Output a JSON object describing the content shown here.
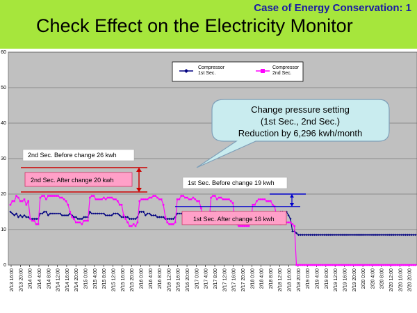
{
  "header": {
    "case_label": "Case of Energy Conservation: 1",
    "title": "Check Effect on the Electricity Monitor",
    "background_color": "#a6e63c"
  },
  "chart_data": {
    "type": "line",
    "title": "",
    "xlabel": "",
    "ylabel": "",
    "ylim": [
      0,
      60
    ],
    "yticks": [
      "0",
      "10",
      "20",
      "30",
      "40",
      "50",
      "60"
    ],
    "grid": true,
    "legend_position": "top-center",
    "x_tick_labels": [
      "2/13 16:00",
      "2/13 20:00",
      "2/14 0:00",
      "2/14 4:00",
      "2/14 8:00",
      "2/14 12:00",
      "2/14 16:00",
      "2/14 20:00",
      "2/15 0:00",
      "2/15 4:00",
      "2/15 8:00",
      "2/15 12:00",
      "2/15 16:00",
      "2/15 20:00",
      "2/16 0:00",
      "2/16 4:00",
      "2/16 8:00",
      "2/16 12:00",
      "2/16 16:00",
      "2/16 20:00",
      "2/17 0:00",
      "2/17 4:00",
      "2/17 8:00",
      "2/17 12:00",
      "2/17 16:00",
      "2/17 20:00",
      "2/18 0:00",
      "2/18 4:00",
      "2/18 8:00",
      "2/18 12:00",
      "2/18 16:00",
      "2/18 20:00",
      "2/19 0:00",
      "2/19 4:00",
      "2/19 8:00",
      "2/19 12:00",
      "2/19 16:00",
      "2/19 20:00",
      "2/20 0:00",
      "2/20 4:00",
      "2/20 8:00",
      "2/20 12:00",
      "2/20 16:00",
      "2/20 20:00"
    ],
    "series": [
      {
        "name": "Compressor 1st Sec.",
        "color": "#000080",
        "values": [
          15,
          14.5,
          14,
          14.5,
          13.5,
          14,
          13.5,
          14,
          13.5,
          13.5,
          13,
          13,
          13,
          13,
          13,
          14.5,
          14.5,
          15,
          15,
          14,
          14.5,
          14.5,
          14.5,
          14.5,
          14.5,
          14.5,
          14,
          14,
          14,
          14,
          14.5,
          14,
          13.5,
          13.5,
          13,
          13,
          13,
          13.5,
          13.5,
          13.5,
          15,
          14.5,
          14.5,
          14.5,
          14.5,
          14.5,
          14.5,
          14.5,
          14,
          14,
          14,
          14,
          14.5,
          14.5,
          14.5,
          14,
          13.5,
          13.5,
          13.5,
          13.5,
          13,
          13,
          13,
          13,
          13.5,
          15,
          15,
          15,
          14,
          14.5,
          14.5,
          14,
          14,
          14,
          13.5,
          13.5,
          13.5,
          13.5,
          13,
          13,
          13,
          13,
          13,
          13.5,
          14.5,
          14.5,
          14.5,
          14.5,
          14.5,
          14.5,
          14.5,
          14,
          14,
          14,
          14,
          13.5,
          13.5,
          13.5,
          13,
          13,
          13.5,
          15,
          15,
          15,
          14.5,
          14.5,
          14,
          14,
          14,
          14,
          14,
          13.5,
          13.5,
          13.5,
          13.5,
          13.5,
          13.5,
          14.5,
          14.5,
          14.5,
          14.5,
          14.5,
          14,
          14.5,
          14.5,
          14.5,
          14,
          14,
          14,
          14,
          13.5,
          13.5,
          13.5,
          13.5,
          14,
          14.5,
          15,
          15,
          14,
          15,
          14,
          13,
          9.5,
          9.5,
          9,
          8.5,
          8.5,
          8.5,
          8.5,
          8.5,
          8.5,
          8.5,
          8.5,
          8.5,
          8.5,
          8.5,
          8.5,
          8.5,
          8.5,
          8.5,
          8.5,
          8.5,
          8.5,
          8.5,
          8.5,
          8.5,
          8.5,
          8.5,
          8.5,
          8.5,
          8.5,
          8.5,
          8.5,
          8.5,
          8.5,
          8.5,
          8.5,
          8.5,
          8.5,
          8.5,
          8.5,
          8.5,
          8.5,
          8.5,
          8.5,
          8.5,
          8.5,
          8.5,
          8.5,
          8.5,
          8.5,
          8.5,
          8.5,
          8.5,
          8.5,
          8.5,
          8.5,
          8.5,
          8.5,
          8.5,
          8.5,
          8.5,
          8.5,
          8.5,
          8.5
        ]
      },
      {
        "name": "Compressor 2nd Sec.",
        "color": "#ff00ff",
        "values": [
          17,
          18,
          18,
          19.5,
          19,
          18,
          18,
          18.5,
          17,
          18,
          13,
          12.5,
          12.5,
          11.5,
          11.5,
          19,
          19.5,
          19.5,
          18.5,
          19.5,
          19.5,
          19.5,
          19.5,
          19.5,
          19.5,
          19,
          19,
          18.5,
          18,
          17,
          15,
          13.5,
          13,
          12,
          12,
          12,
          11.5,
          12.5,
          12.5,
          12.5,
          19,
          19.5,
          19.5,
          18.5,
          18.5,
          18.5,
          18.5,
          19,
          18.5,
          19,
          19,
          19,
          18.5,
          18.5,
          18,
          17,
          17,
          14,
          13,
          12,
          11,
          11,
          11.5,
          11,
          12,
          18,
          18.5,
          18.5,
          18.5,
          18.5,
          19,
          19,
          19.5,
          19.5,
          19,
          18.5,
          18.5,
          17,
          13.5,
          12,
          11.5,
          11.5,
          11.5,
          12,
          18.5,
          18.5,
          19.5,
          19.5,
          19,
          19,
          18.5,
          18.5,
          19,
          18.5,
          18,
          18,
          16,
          13,
          12,
          12,
          12,
          19,
          19.5,
          19.5,
          18.5,
          19,
          19,
          18.5,
          18.5,
          18.5,
          18.5,
          18,
          17.5,
          13,
          11.5,
          11,
          11,
          11,
          11,
          11,
          11,
          12,
          17,
          17,
          18,
          18.5,
          18.5,
          18.5,
          18.5,
          18,
          18,
          18,
          17,
          16.5,
          14,
          12,
          11.5,
          12,
          12,
          12,
          12,
          12,
          11.5,
          11,
          0,
          0,
          0,
          0,
          0,
          0,
          0,
          0,
          0,
          0,
          0,
          0,
          0,
          0,
          0,
          0,
          0,
          0,
          0,
          0,
          0,
          0,
          0,
          0,
          0,
          0,
          0,
          0,
          0,
          0,
          0,
          0,
          0,
          0,
          0,
          0,
          0,
          0,
          0,
          0,
          0,
          0,
          0,
          0,
          0,
          0,
          0,
          0,
          0,
          0,
          0,
          0,
          0,
          0,
          0,
          0,
          0,
          0,
          0,
          0,
          0
        ]
      }
    ],
    "annotations": {
      "callout": [
        "Change pressure setting",
        "(1st Sec., 2nd Sec.)",
        "Reduction by 6,296 kwh/month"
      ],
      "second_before": "2nd Sec. Before change  26 kwh",
      "second_after": "2nd Sec. After change  20 kwh",
      "first_before": "1st Sec. Before change  19 kwh",
      "first_after": "1st Sec. After change  16 kwh"
    }
  }
}
